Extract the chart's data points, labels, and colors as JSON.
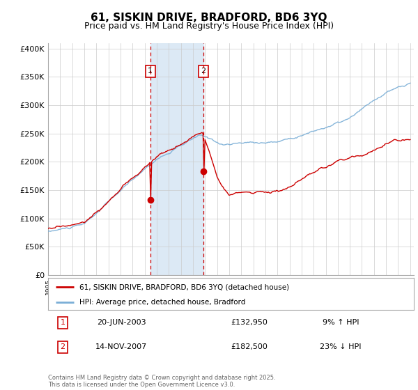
{
  "title": "61, SISKIN DRIVE, BRADFORD, BD6 3YQ",
  "subtitle": "Price paid vs. HM Land Registry's House Price Index (HPI)",
  "background_color": "#ffffff",
  "plot_bg_color": "#ffffff",
  "grid_color": "#cccccc",
  "ylim": [
    0,
    410000
  ],
  "yticks": [
    0,
    50000,
    100000,
    150000,
    200000,
    250000,
    300000,
    350000,
    400000
  ],
  "ytick_labels": [
    "£0",
    "£50K",
    "£100K",
    "£150K",
    "£200K",
    "£250K",
    "£300K",
    "£350K",
    "£400K"
  ],
  "sale1_date": 2003.47,
  "sale1_price": 132950,
  "sale1_label": "1",
  "sale1_text": "20-JUN-2003",
  "sale1_amount": "£132,950",
  "sale1_hpi": "9% ↑ HPI",
  "sale2_date": 2007.88,
  "sale2_price": 182500,
  "sale2_label": "2",
  "sale2_text": "14-NOV-2007",
  "sale2_amount": "£182,500",
  "sale2_hpi": "23% ↓ HPI",
  "line1_color": "#cc0000",
  "line2_color": "#7aaed6",
  "shade_color": "#dce9f5",
  "vline_color": "#cc0000",
  "box_color": "#cc0000",
  "legend1": "61, SISKIN DRIVE, BRADFORD, BD6 3YQ (detached house)",
  "legend2": "HPI: Average price, detached house, Bradford",
  "footer": "Contains HM Land Registry data © Crown copyright and database right 2025.\nThis data is licensed under the Open Government Licence v3.0.",
  "title_fontsize": 11,
  "subtitle_fontsize": 9,
  "tick_fontsize": 8
}
